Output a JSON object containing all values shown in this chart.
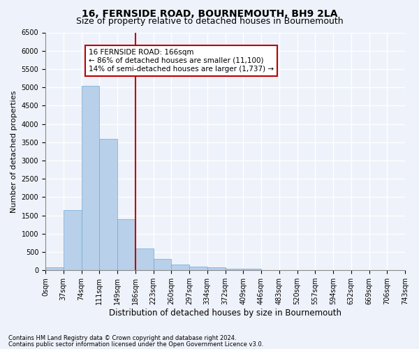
{
  "title": "16, FERNSIDE ROAD, BOURNEMOUTH, BH9 2LA",
  "subtitle": "Size of property relative to detached houses in Bournemouth",
  "xlabel": "Distribution of detached houses by size in Bournemouth",
  "ylabel": "Number of detached properties",
  "bin_labels": [
    "0sqm",
    "37sqm",
    "74sqm",
    "111sqm",
    "149sqm",
    "186sqm",
    "223sqm",
    "260sqm",
    "297sqm",
    "334sqm",
    "372sqm",
    "409sqm",
    "446sqm",
    "483sqm",
    "520sqm",
    "557sqm",
    "594sqm",
    "632sqm",
    "669sqm",
    "706sqm",
    "743sqm"
  ],
  "bar_values": [
    75,
    1650,
    5050,
    3600,
    1400,
    600,
    300,
    150,
    100,
    75,
    50,
    50,
    0,
    0,
    0,
    0,
    0,
    0,
    0,
    0
  ],
  "bar_color": "#b8d0ea",
  "bar_edge_color": "#6fa8d4",
  "vline_color": "#bb0000",
  "vline_bin": 5,
  "ylim_max": 6500,
  "ytick_step": 500,
  "annotation_title": "16 FERNSIDE ROAD: 166sqm",
  "annotation_line1": "← 86% of detached houses are smaller (11,100)",
  "annotation_line2": "14% of semi-detached houses are larger (1,737) →",
  "annotation_box_color": "#ffffff",
  "annotation_box_edge": "#bb0000",
  "footnote1": "Contains HM Land Registry data © Crown copyright and database right 2024.",
  "footnote2": "Contains public sector information licensed under the Open Government Licence v3.0.",
  "background_color": "#eef2fa",
  "plot_bg_color": "#eef2fa",
  "grid_color": "#ffffff",
  "title_fontsize": 10,
  "subtitle_fontsize": 9,
  "xlabel_fontsize": 8.5,
  "ylabel_fontsize": 8,
  "tick_fontsize": 7,
  "annot_fontsize": 7.5
}
